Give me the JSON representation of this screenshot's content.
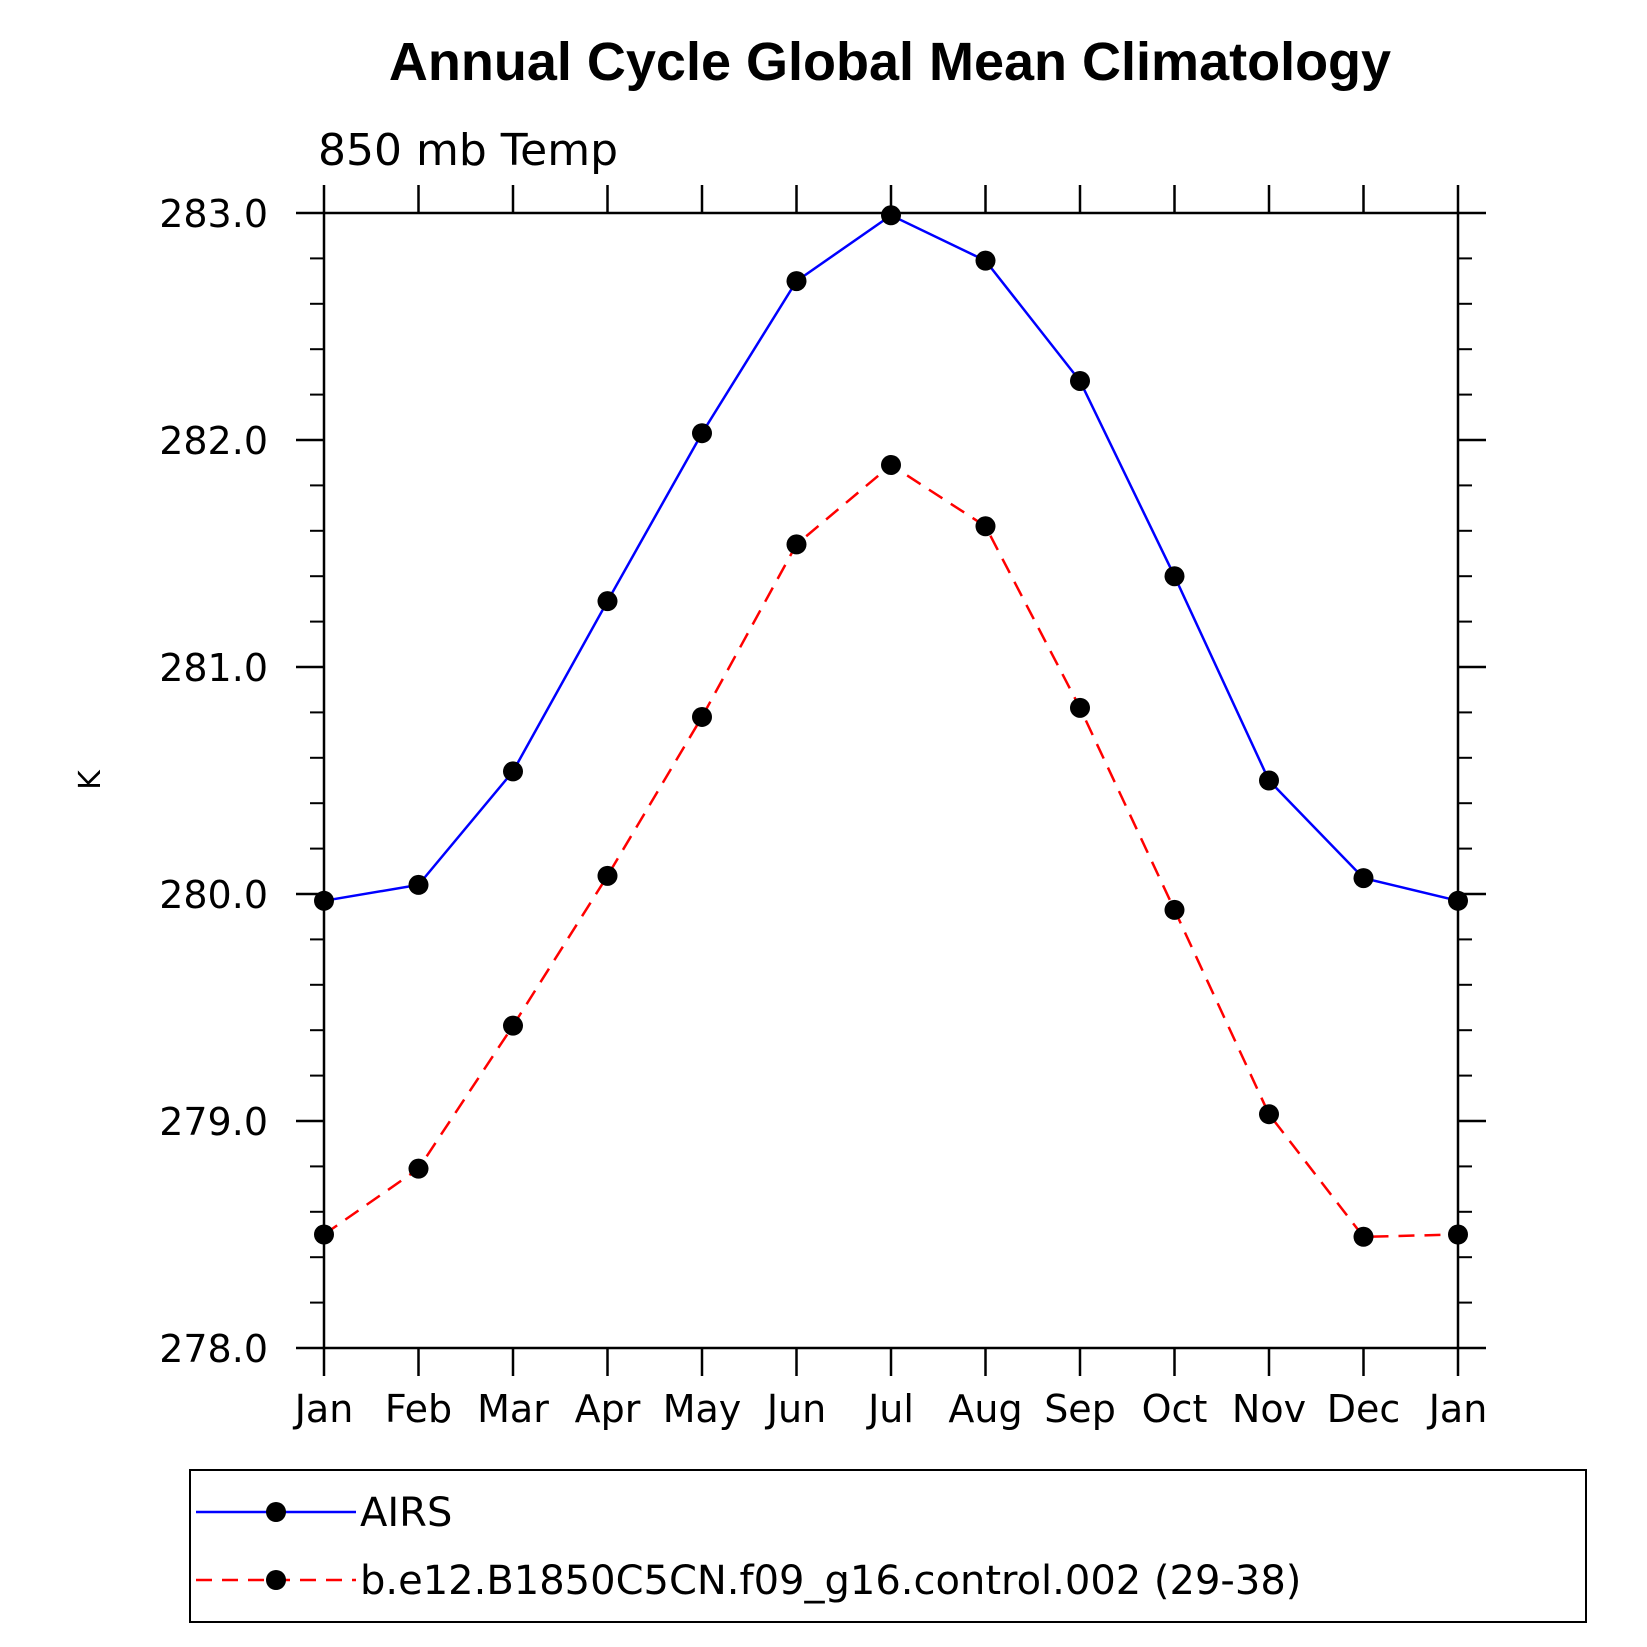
{
  "chart_data": {
    "type": "line",
    "title": "Annual Cycle Global Mean Climatology",
    "subtitle": "850 mb Temp",
    "ylabel": "K",
    "xlabel": "",
    "categories": [
      "Jan",
      "Feb",
      "Mar",
      "Apr",
      "May",
      "Jun",
      "Jul",
      "Aug",
      "Sep",
      "Oct",
      "Nov",
      "Dec",
      "Jan"
    ],
    "ylim": [
      278.0,
      283.0
    ],
    "yticks": [
      278.0,
      279.0,
      280.0,
      281.0,
      282.0,
      283.0
    ],
    "ytick_labels": [
      "278.0",
      "279.0",
      "280.0",
      "281.0",
      "282.0",
      "283.0"
    ],
    "grid": false,
    "legend_position": "bottom",
    "series": [
      {
        "name": "AIRS",
        "color": "#0000ff",
        "style": "solid",
        "marker": "filled-circle",
        "values": [
          279.97,
          280.04,
          280.54,
          281.29,
          282.03,
          282.7,
          282.99,
          282.79,
          282.26,
          281.4,
          280.5,
          280.07,
          279.97
        ]
      },
      {
        "name": "b.e12.B1850C5CN.f09_g16.control.002 (29-38)",
        "color": "#ff0000",
        "style": "dashed",
        "marker": "filled-circle",
        "values": [
          278.5,
          278.79,
          279.42,
          280.08,
          280.78,
          281.54,
          281.89,
          281.62,
          280.82,
          279.93,
          279.03,
          278.49,
          278.5
        ]
      }
    ]
  }
}
